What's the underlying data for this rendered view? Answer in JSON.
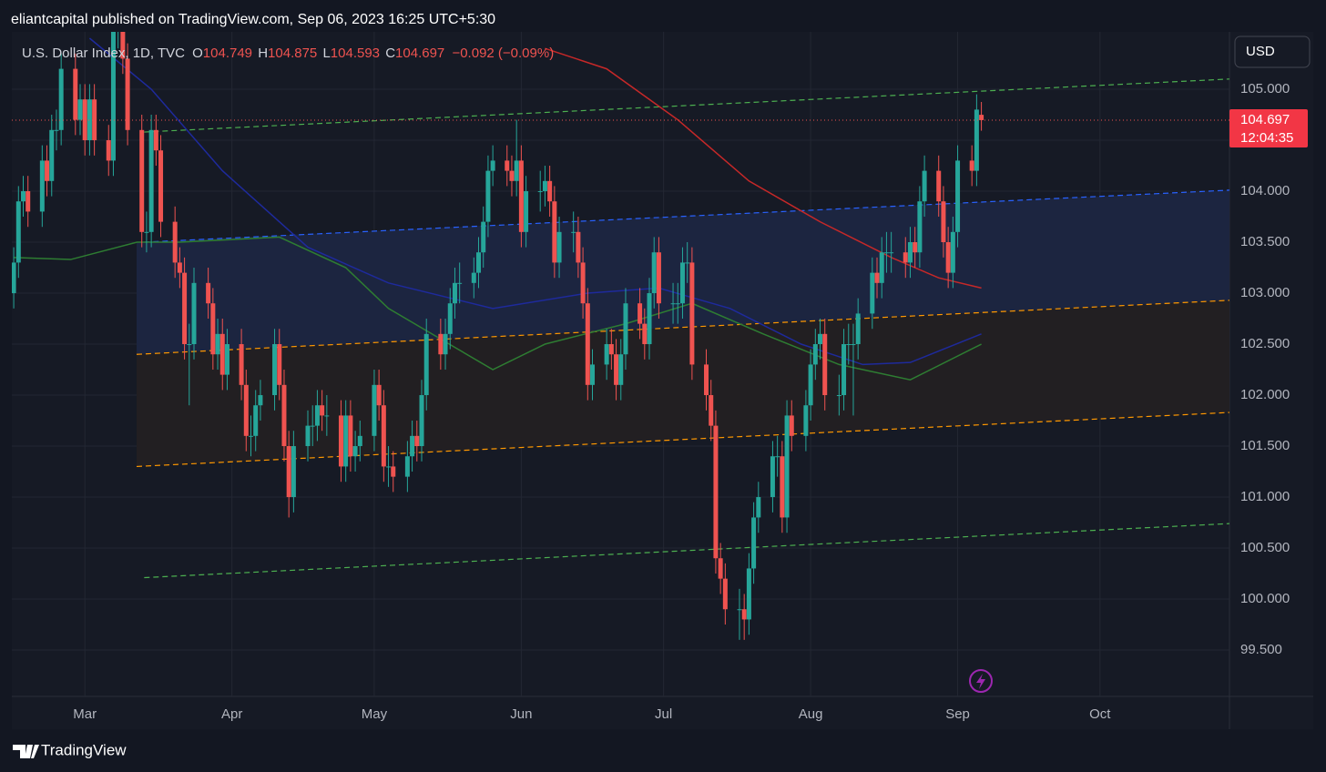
{
  "header": {
    "text": "eliantcapital published on TradingView.com, Sep 06, 2023 16:25 UTC+5:30"
  },
  "chart_data": {
    "type": "candlestick",
    "symbol": "U.S. Dollar Index, 1D, TVC",
    "legend": {
      "o_label": "O",
      "open": 104.749,
      "h_label": "H",
      "high": 104.875,
      "l_label": "L",
      "low": 104.593,
      "c_label": "C",
      "close": 104.697,
      "change": "−0.092 (−0.09%)"
    },
    "currency": "USD",
    "last_price": 104.697,
    "countdown": "12:04:35",
    "up_color": "#26a69a",
    "down_color": "#ef5350",
    "x": [
      45,
      46,
      47,
      48,
      51,
      52,
      53,
      54,
      55,
      58,
      59,
      60,
      61,
      62,
      65,
      66,
      67,
      68,
      69,
      72,
      73,
      74,
      75,
      76,
      79,
      80,
      81,
      82,
      83,
      86,
      87,
      88,
      89,
      90,
      93,
      94,
      95,
      96,
      97,
      100,
      101,
      102,
      103,
      104,
      107,
      108,
      109,
      110,
      111,
      114,
      115,
      116,
      117,
      118,
      121,
      122,
      123,
      124,
      125,
      128,
      129,
      130,
      131,
      132,
      135,
      136,
      137,
      138,
      139,
      142,
      143,
      144,
      145,
      146,
      149,
      150,
      151,
      152,
      153,
      156,
      157,
      158,
      159,
      160,
      163,
      164,
      165,
      166,
      167,
      170,
      171,
      172,
      173,
      174,
      177,
      178,
      179,
      180,
      181,
      184,
      185,
      186,
      187,
      188,
      191,
      192,
      193,
      194,
      195,
      198,
      199,
      200,
      201,
      202,
      205,
      206,
      207,
      208,
      209,
      212,
      213,
      214,
      215,
      216,
      219,
      220,
      221,
      222,
      223,
      226,
      227,
      228,
      229,
      230,
      233,
      234,
      235,
      236,
      237,
      240,
      241,
      242,
      243,
      244,
      247,
      248,
      249
    ],
    "ohlc": [
      [
        103.0,
        103.45,
        102.85,
        103.3
      ],
      [
        103.3,
        104.05,
        103.15,
        103.9
      ],
      [
        103.9,
        104.15,
        103.75,
        104.0
      ],
      [
        104.0,
        104.15,
        103.65,
        103.8
      ],
      [
        103.8,
        104.45,
        103.65,
        104.3
      ],
      [
        104.3,
        104.45,
        103.95,
        104.1
      ],
      [
        104.1,
        104.75,
        103.95,
        104.6
      ],
      [
        104.6,
        104.8,
        104.4,
        104.6
      ],
      [
        104.6,
        105.35,
        104.45,
        105.2
      ],
      [
        105.2,
        105.35,
        104.55,
        104.7
      ],
      [
        104.7,
        105.05,
        104.55,
        104.9
      ],
      [
        104.9,
        105.05,
        104.35,
        104.5
      ],
      [
        104.5,
        105.05,
        104.35,
        104.9
      ],
      [
        104.9,
        105.05,
        104.35,
        104.5
      ],
      [
        104.5,
        104.65,
        104.15,
        104.3
      ],
      [
        104.3,
        105.75,
        104.15,
        105.6
      ],
      [
        105.6,
        105.8,
        105.4,
        105.6
      ],
      [
        105.6,
        105.75,
        105.15,
        105.3
      ],
      [
        105.3,
        105.45,
        104.45,
        104.6
      ],
      [
        104.6,
        104.75,
        103.45,
        103.6
      ],
      [
        103.6,
        103.8,
        103.4,
        103.6
      ],
      [
        103.6,
        104.75,
        103.45,
        104.6
      ],
      [
        104.6,
        104.75,
        104.25,
        104.4
      ],
      [
        104.4,
        104.55,
        103.55,
        103.7
      ],
      [
        103.7,
        103.85,
        103.15,
        103.3
      ],
      [
        103.3,
        103.45,
        103.05,
        103.2
      ],
      [
        103.2,
        103.35,
        102.35,
        102.5
      ],
      [
        102.5,
        102.7,
        101.9,
        102.5
      ],
      [
        102.5,
        103.25,
        102.35,
        103.1
      ],
      [
        103.1,
        103.25,
        102.75,
        102.9
      ],
      [
        102.9,
        103.05,
        102.25,
        102.4
      ],
      [
        102.4,
        102.75,
        102.25,
        102.6
      ],
      [
        102.6,
        102.75,
        102.05,
        102.2
      ],
      [
        102.2,
        102.65,
        102.05,
        102.5
      ],
      [
        102.5,
        102.65,
        101.95,
        102.1
      ],
      [
        102.1,
        102.25,
        101.45,
        101.6
      ],
      [
        101.6,
        101.8,
        101.4,
        101.6
      ],
      [
        101.6,
        102.05,
        101.45,
        101.9
      ],
      [
        101.9,
        102.15,
        101.75,
        102.0
      ],
      [
        102.0,
        102.65,
        101.85,
        102.5
      ],
      [
        102.5,
        102.65,
        101.95,
        102.1
      ],
      [
        102.1,
        102.25,
        101.35,
        101.5
      ],
      [
        101.5,
        101.65,
        100.8,
        101.0
      ],
      [
        101.0,
        101.65,
        100.85,
        101.5
      ],
      [
        101.5,
        101.85,
        101.35,
        101.7
      ],
      [
        101.7,
        101.9,
        101.5,
        101.7
      ],
      [
        101.7,
        102.05,
        101.55,
        101.9
      ],
      [
        101.9,
        102.05,
        101.65,
        101.8
      ],
      [
        101.8,
        102.0,
        101.6,
        101.8
      ],
      [
        101.8,
        101.95,
        101.15,
        101.3
      ],
      [
        101.3,
        101.95,
        101.15,
        101.8
      ],
      [
        101.8,
        101.95,
        101.25,
        101.4
      ],
      [
        101.4,
        101.65,
        101.25,
        101.5
      ],
      [
        101.5,
        101.75,
        101.35,
        101.6
      ],
      [
        101.6,
        102.25,
        101.45,
        102.1
      ],
      [
        102.1,
        102.25,
        101.75,
        101.9
      ],
      [
        101.9,
        102.05,
        101.15,
        101.3
      ],
      [
        101.3,
        101.5,
        101.1,
        101.3
      ],
      [
        101.3,
        101.45,
        101.05,
        101.2
      ],
      [
        101.2,
        101.55,
        101.05,
        101.4
      ],
      [
        101.4,
        101.75,
        101.25,
        101.6
      ],
      [
        101.6,
        101.75,
        101.35,
        101.5
      ],
      [
        101.5,
        102.15,
        101.35,
        102.0
      ],
      [
        102.0,
        102.75,
        101.85,
        102.6
      ],
      [
        102.6,
        102.75,
        102.25,
        102.4
      ],
      [
        102.4,
        102.75,
        102.25,
        102.6
      ],
      [
        102.6,
        103.05,
        102.45,
        102.9
      ],
      [
        102.9,
        103.25,
        102.75,
        103.1
      ],
      [
        103.1,
        103.3,
        102.9,
        103.1
      ],
      [
        103.1,
        103.35,
        102.95,
        103.2
      ],
      [
        103.2,
        103.55,
        103.05,
        103.4
      ],
      [
        103.4,
        103.85,
        103.25,
        103.7
      ],
      [
        103.7,
        104.35,
        103.55,
        104.2
      ],
      [
        104.2,
        104.45,
        104.05,
        104.3
      ],
      [
        104.3,
        104.45,
        104.05,
        104.2
      ],
      [
        104.2,
        104.35,
        103.95,
        104.1
      ],
      [
        104.1,
        104.7,
        103.95,
        104.3
      ],
      [
        104.3,
        104.45,
        103.45,
        103.6
      ],
      [
        103.6,
        104.15,
        103.45,
        104.0
      ],
      [
        104.0,
        104.2,
        103.8,
        104.0
      ],
      [
        104.0,
        104.25,
        103.85,
        104.1
      ],
      [
        104.1,
        104.25,
        103.75,
        103.9
      ],
      [
        103.9,
        104.05,
        103.15,
        103.3
      ],
      [
        103.3,
        103.75,
        103.15,
        103.6
      ],
      [
        103.6,
        103.8,
        103.4,
        103.6
      ],
      [
        103.6,
        103.75,
        103.15,
        103.3
      ],
      [
        103.3,
        103.45,
        102.75,
        102.9
      ],
      [
        102.9,
        103.05,
        101.95,
        102.1
      ],
      [
        102.1,
        102.45,
        101.95,
        102.3
      ],
      [
        102.3,
        102.65,
        102.15,
        102.5
      ],
      [
        102.5,
        102.65,
        102.25,
        102.4
      ],
      [
        102.4,
        102.55,
        101.95,
        102.1
      ],
      [
        102.1,
        102.55,
        101.95,
        102.4
      ],
      [
        102.4,
        103.05,
        102.25,
        102.9
      ],
      [
        102.9,
        103.05,
        102.55,
        102.7
      ],
      [
        102.7,
        102.85,
        102.35,
        102.5
      ],
      [
        102.5,
        103.15,
        102.35,
        103.0
      ],
      [
        103.0,
        103.55,
        102.85,
        103.4
      ],
      [
        103.4,
        103.55,
        102.75,
        102.9
      ],
      [
        102.9,
        103.1,
        102.7,
        102.9
      ],
      [
        102.9,
        103.1,
        102.7,
        102.9
      ],
      [
        102.9,
        103.45,
        102.75,
        103.3
      ],
      [
        103.3,
        103.5,
        103.1,
        103.3
      ],
      [
        103.3,
        103.45,
        102.15,
        102.3
      ],
      [
        102.3,
        102.45,
        101.85,
        102.0
      ],
      [
        102.0,
        102.15,
        101.55,
        101.7
      ],
      [
        101.7,
        101.85,
        100.25,
        100.4
      ],
      [
        100.4,
        100.55,
        100.05,
        100.2
      ],
      [
        100.2,
        100.35,
        99.75,
        99.9
      ],
      [
        99.9,
        100.1,
        99.6,
        99.9
      ],
      [
        99.9,
        100.05,
        99.6,
        99.8
      ],
      [
        99.8,
        100.45,
        99.65,
        100.3
      ],
      [
        100.3,
        100.95,
        100.15,
        100.8
      ],
      [
        100.8,
        101.15,
        100.65,
        101.0
      ],
      [
        101.0,
        101.55,
        100.85,
        101.4
      ],
      [
        101.4,
        101.6,
        101.2,
        101.4
      ],
      [
        101.4,
        101.55,
        100.65,
        100.8
      ],
      [
        100.8,
        101.95,
        100.65,
        101.8
      ],
      [
        101.8,
        101.95,
        101.45,
        101.6
      ],
      [
        101.6,
        102.05,
        101.45,
        101.9
      ],
      [
        101.9,
        102.45,
        101.75,
        102.3
      ],
      [
        102.3,
        102.65,
        102.15,
        102.5
      ],
      [
        102.5,
        102.75,
        102.35,
        102.6
      ],
      [
        102.6,
        102.75,
        101.85,
        102.0
      ],
      [
        102.0,
        102.2,
        101.8,
        102.0
      ],
      [
        102.0,
        102.65,
        101.85,
        102.5
      ],
      [
        102.5,
        102.7,
        102.3,
        102.5
      ],
      [
        102.5,
        102.7,
        101.8,
        102.5
      ],
      [
        102.5,
        102.95,
        102.35,
        102.8
      ],
      [
        102.8,
        103.35,
        102.65,
        103.2
      ],
      [
        103.2,
        103.35,
        102.95,
        103.1
      ],
      [
        103.1,
        103.55,
        102.95,
        103.4
      ],
      [
        103.4,
        103.6,
        103.2,
        103.4
      ],
      [
        103.4,
        103.6,
        103.2,
        103.4
      ],
      [
        103.4,
        103.55,
        103.15,
        103.3
      ],
      [
        103.3,
        103.65,
        103.15,
        103.5
      ],
      [
        103.5,
        103.65,
        103.25,
        103.4
      ],
      [
        103.4,
        104.05,
        103.25,
        103.9
      ],
      [
        103.9,
        104.35,
        103.75,
        104.2
      ],
      [
        104.2,
        104.35,
        103.75,
        103.9
      ],
      [
        103.9,
        104.05,
        103.35,
        103.5
      ],
      [
        103.5,
        103.65,
        103.05,
        103.2
      ],
      [
        103.2,
        103.75,
        103.05,
        103.6
      ],
      [
        103.6,
        104.45,
        103.45,
        104.3
      ],
      [
        104.3,
        104.45,
        104.05,
        104.2
      ],
      [
        104.2,
        104.95,
        104.05,
        104.8
      ],
      [
        104.749,
        104.875,
        104.593,
        104.697
      ]
    ],
    "indicators": [
      {
        "color": "#c62828",
        "x": [
          157,
          170,
          185,
          200,
          215,
          230,
          240,
          249
        ],
        "values": [
          105.4,
          105.2,
          104.7,
          104.1,
          103.7,
          103.35,
          103.15,
          103.05
        ]
      },
      {
        "color": "#1e2a9c",
        "x": [
          61,
          74,
          89,
          107,
          124,
          146,
          166,
          181,
          196,
          211,
          224,
          234,
          249
        ],
        "values": [
          105.5,
          105.0,
          104.2,
          103.45,
          103.1,
          102.85,
          103.0,
          103.05,
          102.85,
          102.5,
          102.3,
          102.32,
          102.6
        ]
      },
      {
        "color": "#2e7d32",
        "x": [
          45,
          57,
          71,
          80,
          101,
          115,
          124,
          146,
          157,
          174,
          188,
          203,
          219,
          234,
          249
        ],
        "values": [
          103.35,
          103.33,
          103.5,
          103.5,
          103.55,
          103.25,
          102.85,
          102.25,
          102.5,
          102.7,
          102.9,
          102.6,
          102.3,
          102.15,
          102.5
        ]
      }
    ],
    "zones": [
      {
        "color": "#1c2540",
        "x": [
          70.9,
          301.3
        ],
        "upper": [
          103.5,
          104.01
        ],
        "lower": [
          102.4,
          102.93
        ]
      },
      {
        "color": "#221f22",
        "x": [
          70.9,
          301.3
        ],
        "upper": [
          102.4,
          102.93
        ],
        "lower": [
          101.3,
          101.83
        ]
      }
    ],
    "drawings": [
      {
        "color": "#4caf50",
        "x": [
          72.5,
          301.3
        ],
        "values": [
          104.58,
          105.1
        ]
      },
      {
        "color": "#4caf50",
        "x": [
          72.5,
          301.3
        ],
        "values": [
          100.21,
          100.74
        ]
      },
      {
        "color": "#2962ff",
        "x": [
          72.5,
          301.3
        ],
        "values": [
          103.5,
          104.01
        ]
      },
      {
        "color": "#ff9800",
        "x": [
          70.9,
          301.3
        ],
        "values": [
          102.4,
          102.93
        ]
      },
      {
        "color": "#ff9800",
        "x": [
          70.9,
          301.3
        ],
        "values": [
          101.3,
          101.83
        ]
      }
    ],
    "xlim": [
      44.6,
      301.3
    ],
    "ylim": [
      99.045,
      105.5625
    ],
    "xticks": [
      {
        "value": 60,
        "label": "Mar"
      },
      {
        "value": 91,
        "label": "Apr"
      },
      {
        "value": 121,
        "label": "May"
      },
      {
        "value": 152,
        "label": "Jun"
      },
      {
        "value": 182,
        "label": "Jul"
      },
      {
        "value": 213,
        "label": "Aug"
      },
      {
        "value": 244,
        "label": "Sep"
      },
      {
        "value": 274,
        "label": "Oct"
      }
    ],
    "yticks": [
      {
        "value": 99.5,
        "label": "99.500"
      },
      {
        "value": 100,
        "label": "100.000"
      },
      {
        "value": 100.5,
        "label": "100.500"
      },
      {
        "value": 101,
        "label": "101.000"
      },
      {
        "value": 101.5,
        "label": "101.500"
      },
      {
        "value": 102,
        "label": "102.000"
      },
      {
        "value": 102.5,
        "label": "102.500"
      },
      {
        "value": 103,
        "label": "103.000"
      },
      {
        "value": 103.5,
        "label": "103.500"
      },
      {
        "value": 104,
        "label": "104.000"
      },
      {
        "value": 104.5,
        "label": "104.500"
      },
      {
        "value": 105,
        "label": "105.000"
      }
    ],
    "grid": true
  },
  "footer": {
    "brand": "TradingView"
  }
}
